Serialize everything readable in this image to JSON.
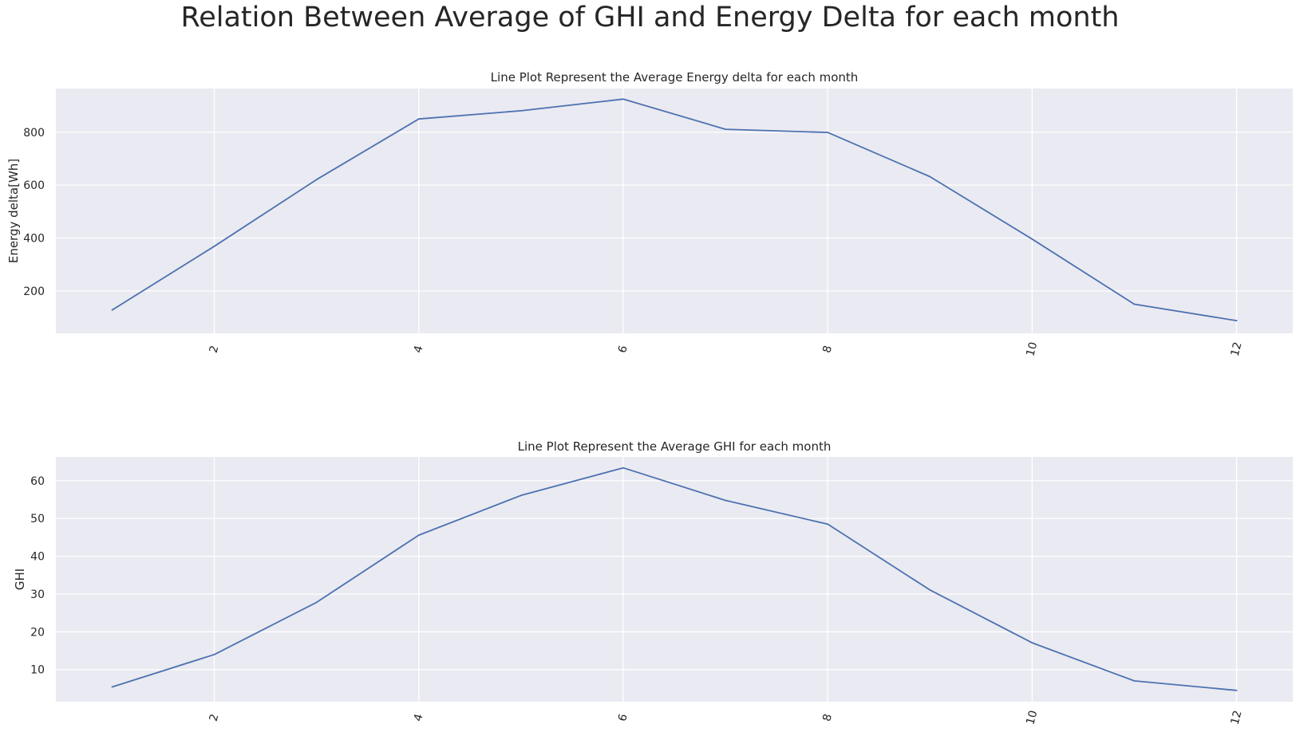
{
  "figure": {
    "title": "Relation Between Average of GHI and Energy Delta for each month"
  },
  "chart_data": [
    {
      "type": "line",
      "title": "Line Plot Represent the Average Energy delta for each month",
      "xlabel": "",
      "ylabel": "Energy delta[Wh]",
      "x": [
        1,
        2,
        3,
        4,
        5,
        6,
        7,
        8,
        9,
        10,
        11,
        12
      ],
      "values": [
        128,
        369,
        621,
        850,
        881,
        925,
        811,
        799,
        632,
        396,
        150,
        88
      ],
      "xticks": [
        2,
        4,
        6,
        8,
        10,
        12
      ],
      "yticks": [
        200,
        400,
        600,
        800
      ],
      "xlim": [
        0.45,
        12.55
      ],
      "ylim": [
        40,
        965
      ],
      "xtick_rotation": "vertical-ish",
      "grid": true,
      "color": "#4c72b0"
    },
    {
      "type": "line",
      "title": "Line Plot Represent the Average GHI for each month",
      "xlabel": "",
      "ylabel": "GHI",
      "x": [
        1,
        2,
        3,
        4,
        5,
        6,
        7,
        8,
        9,
        10,
        11,
        12
      ],
      "values": [
        5.4,
        14.0,
        27.8,
        45.6,
        56.1,
        63.4,
        54.8,
        48.5,
        31.1,
        17.1,
        7.0,
        4.5
      ],
      "xticks": [
        2,
        4,
        6,
        8,
        10,
        12
      ],
      "yticks": [
        10,
        20,
        30,
        40,
        50,
        60
      ],
      "xlim": [
        0.45,
        12.55
      ],
      "ylim": [
        1.5,
        66.3
      ],
      "grid": true,
      "color": "#4c72b0"
    }
  ]
}
